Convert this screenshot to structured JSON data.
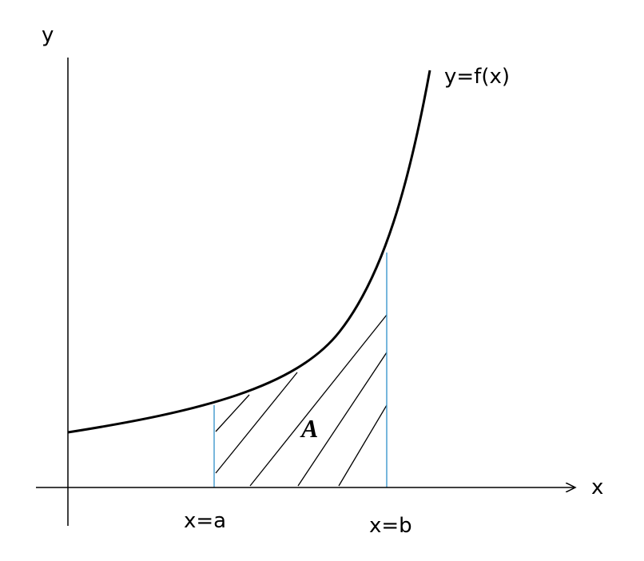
{
  "axes": {
    "y_label": "y",
    "x_label": "x"
  },
  "curve": {
    "label": "y=f(x)"
  },
  "bounds": {
    "lower": "x=a",
    "upper": "x=b"
  },
  "region": {
    "label": "A"
  }
}
